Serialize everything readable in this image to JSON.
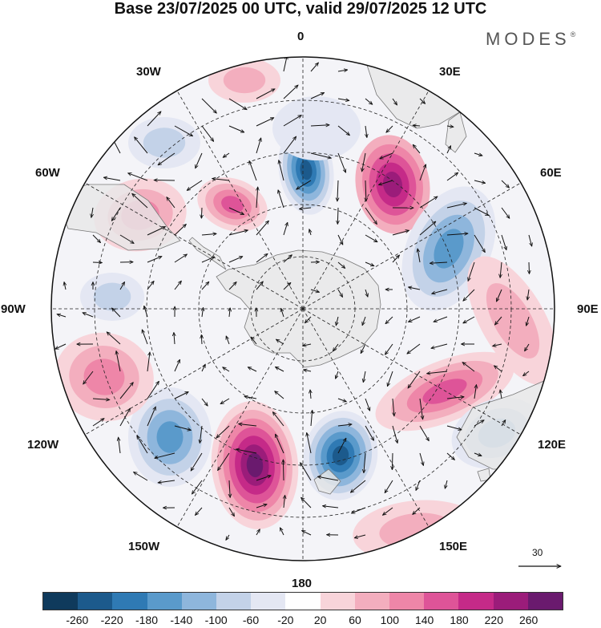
{
  "title": "Base 23/07/2025 00 UTC, valid 29/07/2025 12 UTC",
  "brand": "MODES",
  "brand_mark": "®",
  "longitude_labels": {
    "top": "0",
    "top_right": "30E",
    "right_upper": "60E",
    "right": "90E",
    "right_lower": "120E",
    "bottom_right": "150E",
    "bottom": "180",
    "bottom_left": "150W",
    "left_lower": "120W",
    "left": "90W",
    "left_upper": "60W",
    "top_left": "30W"
  },
  "reference_vector": {
    "label": "30"
  },
  "colorbar": {
    "colors": [
      "#0f3a5c",
      "#1c5a8c",
      "#2f7ab4",
      "#5a9acb",
      "#8eb6dc",
      "#c3d2e8",
      "#e4e7f3",
      "#ffffff",
      "#f8d4da",
      "#f3aebe",
      "#ee86a8",
      "#de5498",
      "#c52a88",
      "#9b1c7a",
      "#6a1a6e"
    ],
    "tick_labels": [
      "-260",
      "-220",
      "-180",
      "-140",
      "-100",
      "-60",
      "-20",
      "20",
      "60",
      "100",
      "140",
      "180",
      "220",
      "260"
    ]
  },
  "map_colors": {
    "land": "#e8e8e8",
    "coast": "#7a7a7a",
    "grid": "#222222"
  }
}
